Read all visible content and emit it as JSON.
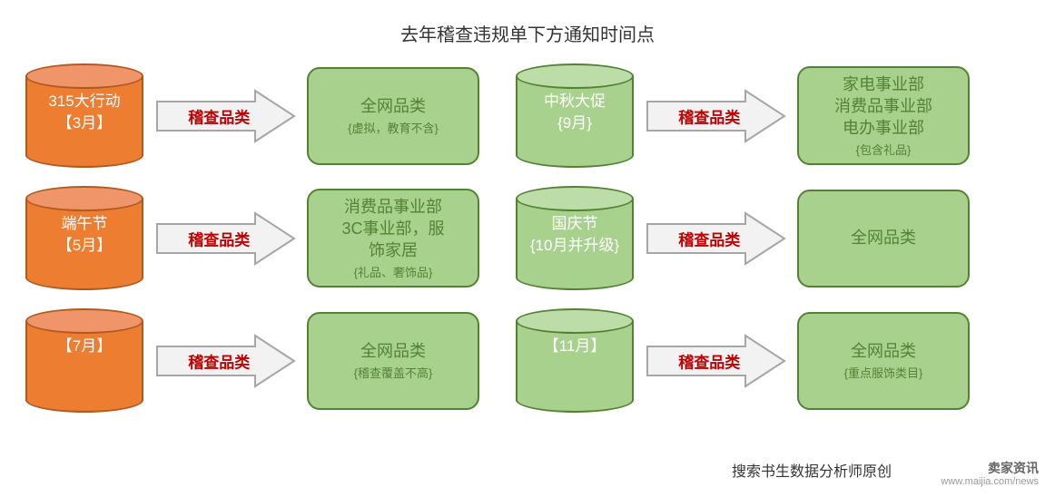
{
  "title": "去年稽查违规单下方通知时间点",
  "colors": {
    "orange_fill": "#ed7d31",
    "orange_border": "#ae5a21",
    "orange_top": "#f0956a",
    "green_fill": "#a9d18e",
    "green_border": "#548235",
    "green_top": "#bcdca8",
    "green_text": "#548235",
    "arrow_fill": "#f2f2f2",
    "arrow_border": "#a6a6a6",
    "arrow_label": "#c00000"
  },
  "arrow_label": "稽查品类",
  "rows": [
    {
      "left_cyl": {
        "line1": "315大行动",
        "line2": "【3月】"
      },
      "left_box": {
        "main": "全网品类",
        "sub": "{虚拟，教育不含}"
      },
      "right_cyl": {
        "line1": "中秋大促",
        "line2": "{9月}"
      },
      "right_box": {
        "main": "家电事业部\n消费品事业部\n电办事业部",
        "sub": "{包含礼品}"
      }
    },
    {
      "left_cyl": {
        "line1": "端午节",
        "line2": "【5月】"
      },
      "left_box": {
        "main": "消费品事业部\n3C事业部，服\n饰家居",
        "sub": "{礼品、奢饰品}"
      },
      "right_cyl": {
        "line1": "国庆节",
        "line2": "{10月并升级}"
      },
      "right_box": {
        "main": "全网品类",
        "sub": ""
      }
    },
    {
      "left_cyl": {
        "line1": "",
        "line2": "【7月】"
      },
      "left_box": {
        "main": "全网品类",
        "sub": "{稽查覆盖不高}"
      },
      "right_cyl": {
        "line1": "",
        "line2": "【11月】"
      },
      "right_box": {
        "main": "全网品类",
        "sub": "{重点服饰类目}"
      }
    }
  ],
  "footer": "搜索书生数据分析师原创",
  "watermark": {
    "brand": "卖家资讯",
    "url": "www.maijia.com/news"
  }
}
